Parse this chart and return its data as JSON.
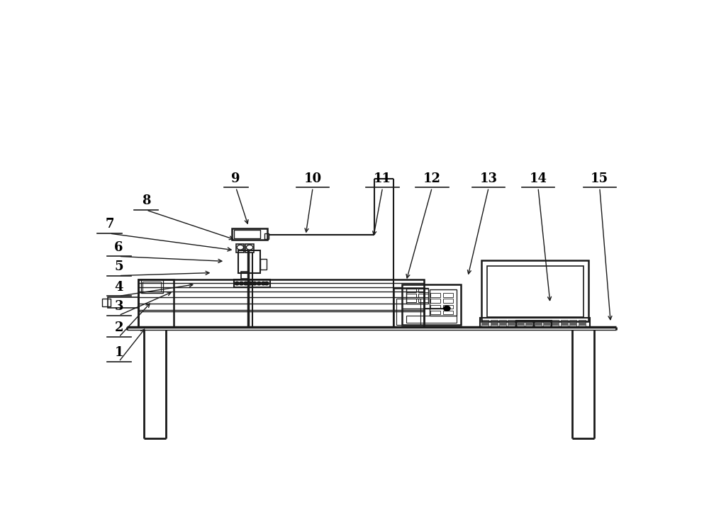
{
  "bg_color": "#ffffff",
  "lc": "#1a1a1a",
  "lw_main": 1.8,
  "lw_thin": 1.0,
  "label_fontsize": 13,
  "labels_info": [
    [
      1,
      0.055,
      0.295,
      0.105,
      0.358
    ],
    [
      2,
      0.055,
      0.355,
      0.115,
      0.42
    ],
    [
      3,
      0.055,
      0.408,
      0.155,
      0.445
    ],
    [
      4,
      0.055,
      0.455,
      0.195,
      0.462
    ],
    [
      5,
      0.055,
      0.505,
      0.225,
      0.49
    ],
    [
      6,
      0.055,
      0.552,
      0.248,
      0.518
    ],
    [
      7,
      0.038,
      0.608,
      0.265,
      0.545
    ],
    [
      8,
      0.105,
      0.665,
      0.268,
      0.57
    ],
    [
      9,
      0.268,
      0.72,
      0.291,
      0.603
    ],
    [
      10,
      0.408,
      0.72,
      0.395,
      0.582
    ],
    [
      11,
      0.535,
      0.72,
      0.518,
      0.575
    ],
    [
      12,
      0.625,
      0.72,
      0.578,
      0.47
    ],
    [
      13,
      0.728,
      0.72,
      0.69,
      0.48
    ],
    [
      14,
      0.818,
      0.72,
      0.84,
      0.415
    ],
    [
      15,
      0.93,
      0.72,
      0.95,
      0.368
    ]
  ]
}
